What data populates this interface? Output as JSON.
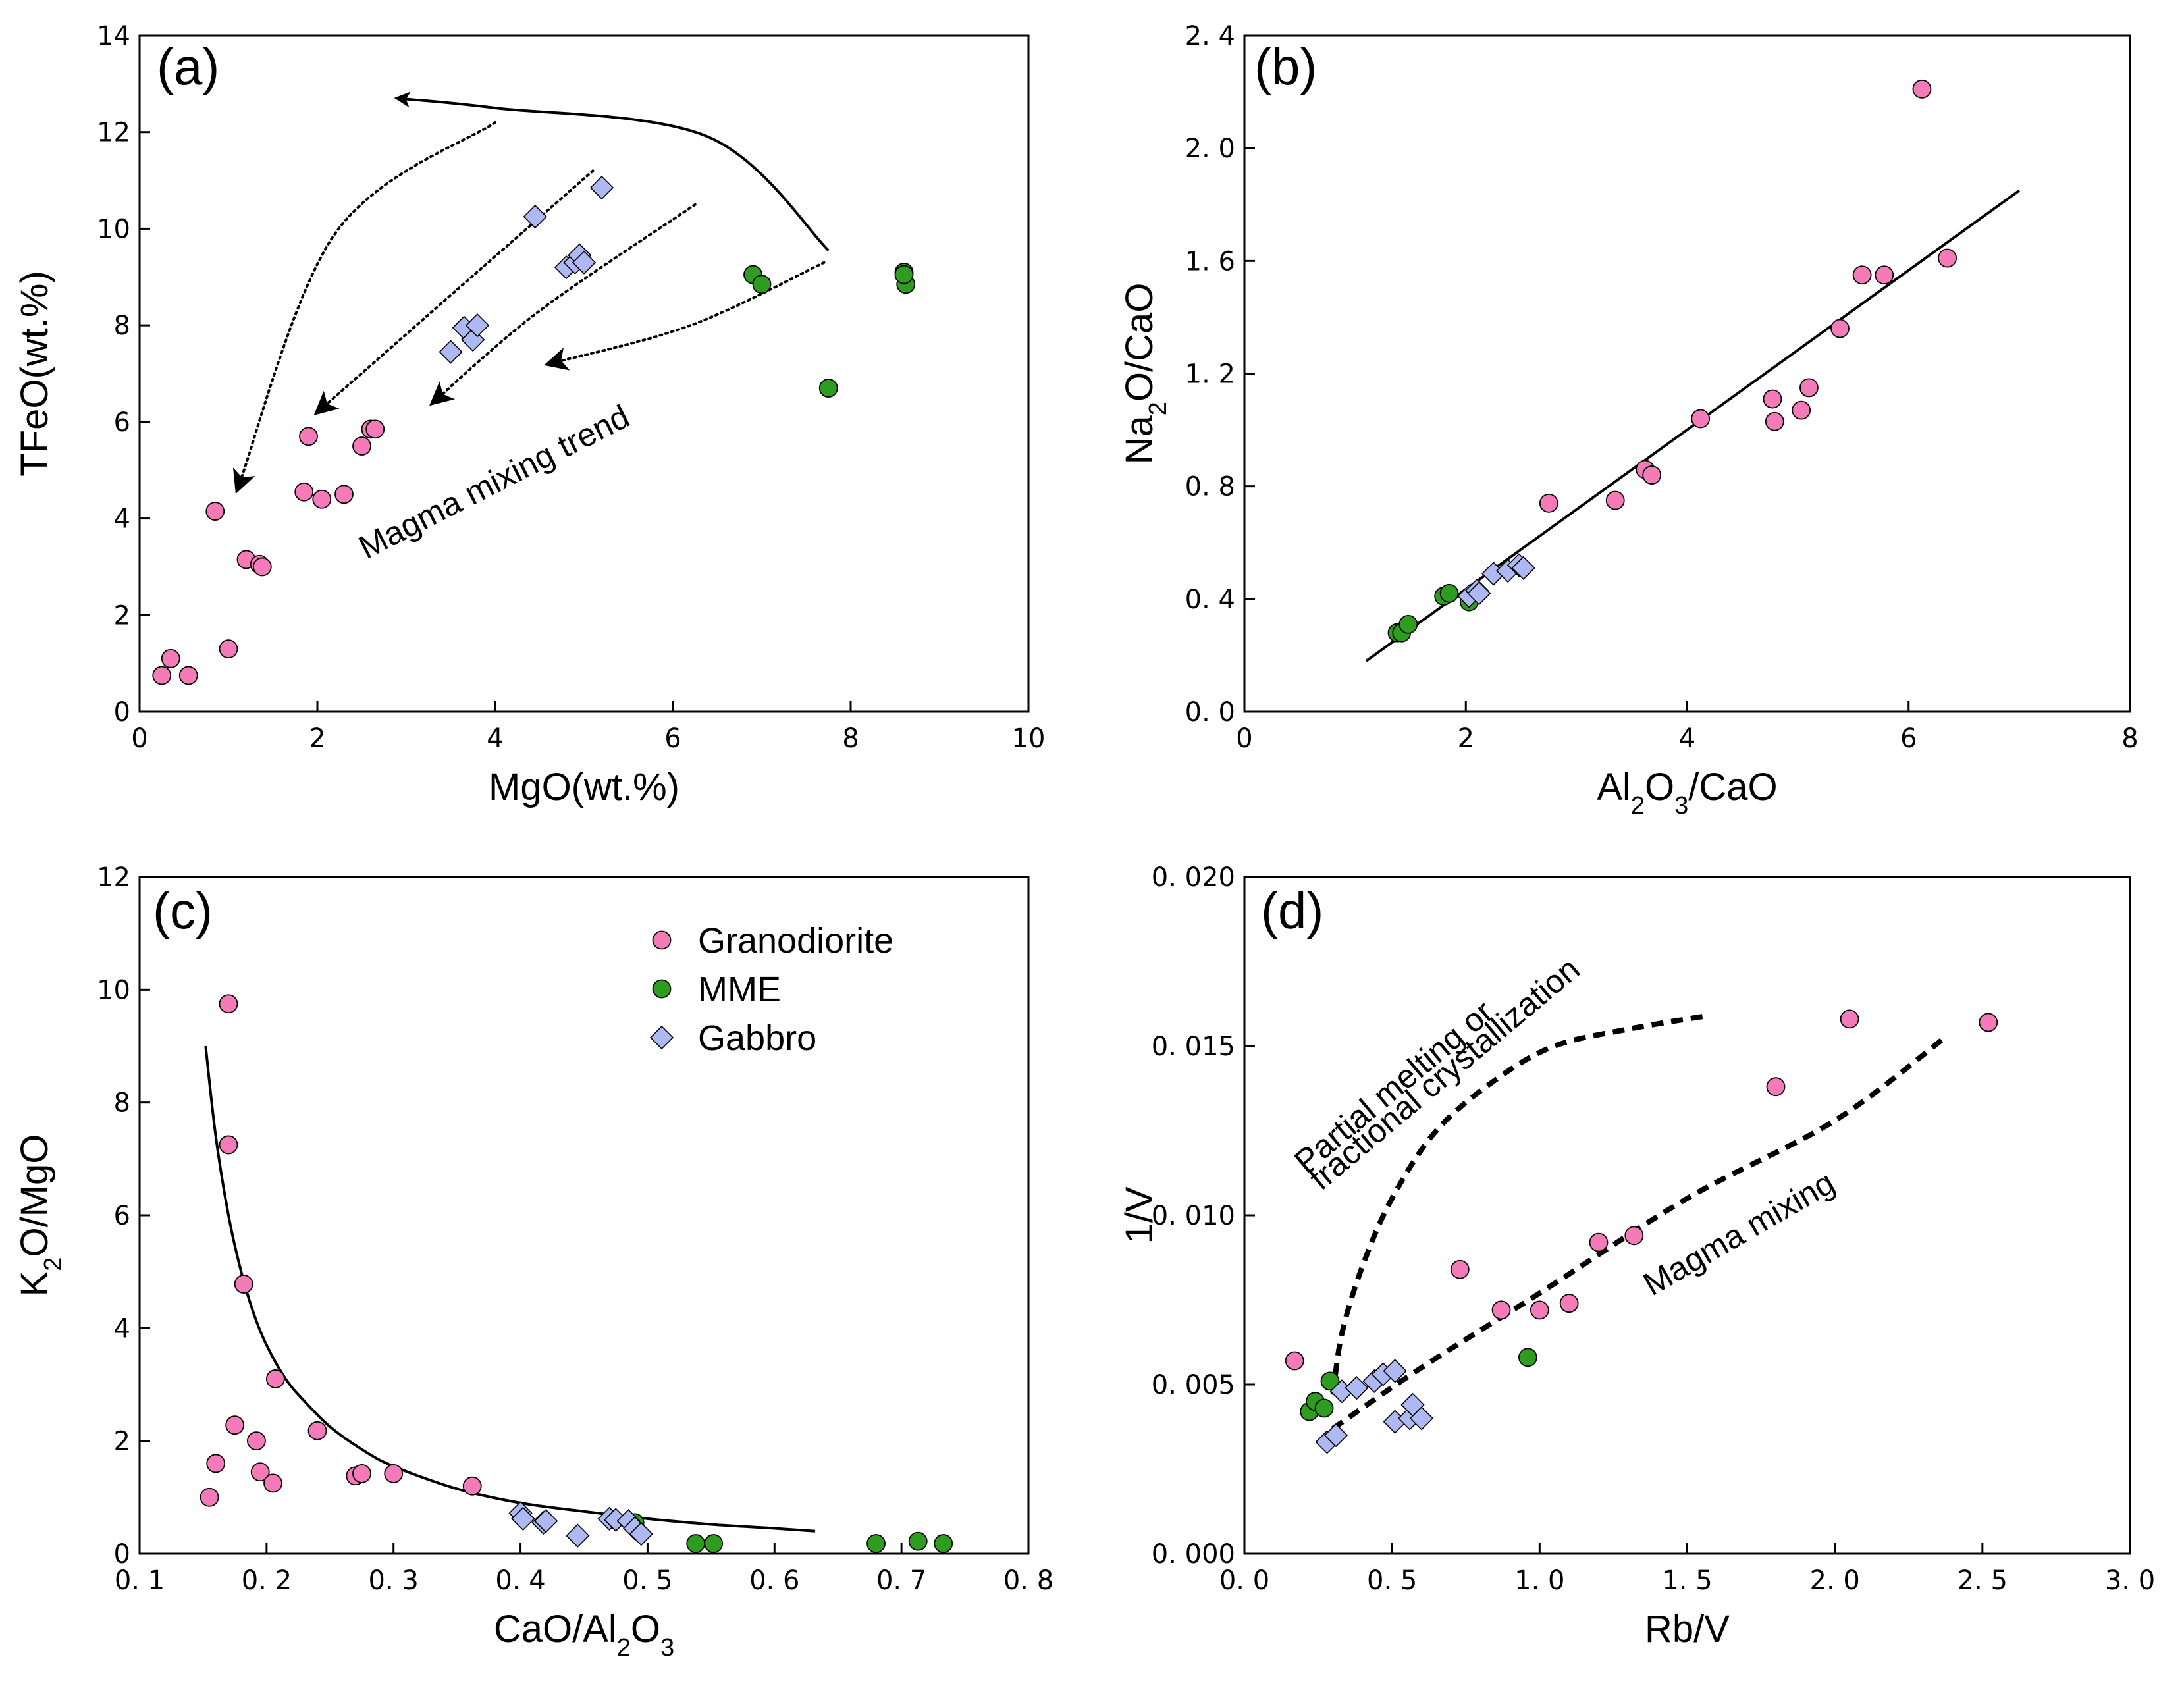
{
  "colors": {
    "granodiorite": "#F57BB8",
    "mme": "#2E9D1F",
    "gabbro": "#AEB8F2",
    "outline": "#000000"
  },
  "legend": [
    {
      "key": "granodiorite",
      "label": "Granodiorite",
      "marker": "circle"
    },
    {
      "key": "mme",
      "label": "MME",
      "marker": "circle"
    },
    {
      "key": "gabbro",
      "label": "Gabbro",
      "marker": "diamond"
    }
  ],
  "chart_data": [
    {
      "id": "a",
      "type": "scatter",
      "panel_label": "(a)",
      "xlabel": "MgO(wt.%)",
      "ylabel": "TFeO(wt.%)",
      "xlim": [
        0,
        10
      ],
      "ylim": [
        0,
        14
      ],
      "xticks": [
        0,
        2,
        4,
        6,
        8,
        10
      ],
      "yticks": [
        0,
        2,
        4,
        6,
        8,
        10,
        12,
        14
      ],
      "xtick_labels": [
        "0",
        "2",
        "4",
        "6",
        "8",
        "10"
      ],
      "ytick_labels": [
        "0",
        "2",
        "4",
        "6",
        "8",
        "10",
        "12",
        "14"
      ],
      "series": [
        {
          "key": "granodiorite",
          "points": [
            [
              0.25,
              0.75
            ],
            [
              0.35,
              1.1
            ],
            [
              0.55,
              0.75
            ],
            [
              1.0,
              1.3
            ],
            [
              0.85,
              4.15
            ],
            [
              1.2,
              3.15
            ],
            [
              1.35,
              3.05
            ],
            [
              1.38,
              3.0
            ],
            [
              1.85,
              4.55
            ],
            [
              2.05,
              4.4
            ],
            [
              2.3,
              4.5
            ],
            [
              1.9,
              5.7
            ],
            [
              2.5,
              5.5
            ],
            [
              2.6,
              5.85
            ],
            [
              2.65,
              5.85
            ]
          ]
        },
        {
          "key": "mme",
          "points": [
            [
              6.9,
              9.05
            ],
            [
              7.0,
              8.85
            ],
            [
              7.75,
              6.7
            ],
            [
              8.6,
              9.1
            ],
            [
              8.62,
              8.85
            ],
            [
              8.6,
              9.05
            ]
          ]
        },
        {
          "key": "gabbro",
          "points": [
            [
              3.5,
              7.45
            ],
            [
              3.65,
              7.95
            ],
            [
              3.75,
              7.7
            ],
            [
              3.8,
              8.0
            ],
            [
              4.45,
              10.25
            ],
            [
              4.8,
              9.2
            ],
            [
              4.9,
              9.3
            ],
            [
              4.95,
              9.45
            ],
            [
              5.0,
              9.3
            ],
            [
              5.2,
              10.85
            ]
          ]
        }
      ],
      "curves": [
        {
          "style": "solid",
          "arrow": "end",
          "points": [
            [
              7.75,
              9.55
            ],
            [
              6.4,
              11.9
            ],
            [
              4.0,
              12.5
            ],
            [
              2.9,
              12.7
            ]
          ]
        },
        {
          "style": "dotted",
          "arrow": "end",
          "points": [
            [
              4.0,
              12.2
            ],
            [
              2.2,
              9.9
            ],
            [
              1.1,
              4.6
            ]
          ]
        },
        {
          "style": "dotted",
          "arrow": "end",
          "points": [
            [
              5.1,
              11.2
            ],
            [
              3.3,
              8.3
            ],
            [
              2.0,
              6.2
            ]
          ]
        },
        {
          "style": "dotted",
          "arrow": "end",
          "points": [
            [
              6.25,
              10.5
            ],
            [
              4.5,
              8.3
            ],
            [
              3.3,
              6.4
            ]
          ]
        },
        {
          "style": "dotted",
          "arrow": "end",
          "points": [
            [
              7.7,
              9.3
            ],
            [
              6.2,
              8.0
            ],
            [
              4.6,
              7.2
            ]
          ]
        }
      ],
      "annotations": [
        {
          "text": "Magma mixing trend",
          "x": 2.55,
          "y": 3.15,
          "rotate": -27
        }
      ]
    },
    {
      "id": "b",
      "type": "scatter",
      "panel_label": "(b)",
      "xlabel_parts": [
        {
          "t": "Al"
        },
        {
          "t": "2",
          "sub": true
        },
        {
          "t": "O"
        },
        {
          "t": "3",
          "sub": true
        },
        {
          "t": "/CaO"
        }
      ],
      "ylabel_parts": [
        {
          "t": "Na"
        },
        {
          "t": "2",
          "sub": true
        },
        {
          "t": "O/CaO"
        }
      ],
      "xlim": [
        0,
        8
      ],
      "ylim": [
        0,
        2.4
      ],
      "xticks": [
        0,
        2,
        4,
        6,
        8
      ],
      "yticks": [
        0,
        0.4,
        0.8,
        1.2,
        1.6,
        2.0,
        2.4
      ],
      "xtick_labels": [
        "0",
        "2",
        "4",
        "6",
        "8"
      ],
      "ytick_labels": [
        "0. 0",
        "0. 4",
        "0. 8",
        "1. 2",
        "1. 6",
        "2. 0",
        "2. 4"
      ],
      "series": [
        {
          "key": "granodiorite",
          "points": [
            [
              2.75,
              0.74
            ],
            [
              3.35,
              0.75
            ],
            [
              3.62,
              0.86
            ],
            [
              3.68,
              0.84
            ],
            [
              4.12,
              1.04
            ],
            [
              4.77,
              1.11
            ],
            [
              4.79,
              1.03
            ],
            [
              5.03,
              1.07
            ],
            [
              5.1,
              1.15
            ],
            [
              5.38,
              1.36
            ],
            [
              5.58,
              1.55
            ],
            [
              5.78,
              1.55
            ],
            [
              6.35,
              1.61
            ],
            [
              6.12,
              2.21
            ]
          ]
        },
        {
          "key": "mme",
          "points": [
            [
              1.38,
              0.28
            ],
            [
              1.42,
              0.28
            ],
            [
              1.48,
              0.31
            ],
            [
              1.8,
              0.41
            ],
            [
              1.85,
              0.42
            ],
            [
              2.03,
              0.39
            ]
          ]
        },
        {
          "key": "gabbro",
          "points": [
            [
              2.03,
              0.41
            ],
            [
              2.1,
              0.43
            ],
            [
              2.12,
              0.42
            ],
            [
              2.25,
              0.49
            ],
            [
              2.38,
              0.5
            ],
            [
              2.48,
              0.52
            ],
            [
              2.52,
              0.51
            ]
          ]
        }
      ],
      "curves": [
        {
          "style": "solid",
          "points": [
            [
              1.1,
              0.18
            ],
            [
              7.0,
              1.85
            ]
          ]
        }
      ],
      "annotations": []
    },
    {
      "id": "c",
      "type": "scatter",
      "panel_label": "(c)",
      "xlabel_parts": [
        {
          "t": "CaO/Al"
        },
        {
          "t": "2",
          "sub": true
        },
        {
          "t": "O"
        },
        {
          "t": "3",
          "sub": true
        }
      ],
      "ylabel_parts": [
        {
          "t": "K"
        },
        {
          "t": "2",
          "sub": true
        },
        {
          "t": "O/MgO"
        }
      ],
      "xlim": [
        0.1,
        0.8
      ],
      "ylim": [
        0,
        12
      ],
      "xticks": [
        0.1,
        0.2,
        0.3,
        0.4,
        0.5,
        0.6,
        0.7,
        0.8
      ],
      "yticks": [
        0,
        2,
        4,
        6,
        8,
        10,
        12
      ],
      "xtick_labels": [
        "0. 1",
        "0. 2",
        "0. 3",
        "0. 4",
        "0. 5",
        "0. 6",
        "0. 7",
        "0. 8"
      ],
      "ytick_labels": [
        "0",
        "2",
        "4",
        "6",
        "8",
        "10",
        "12"
      ],
      "series": [
        {
          "key": "granodiorite",
          "points": [
            [
              0.155,
              1.0
            ],
            [
              0.16,
              1.6
            ],
            [
              0.17,
              9.75
            ],
            [
              0.17,
              7.25
            ],
            [
              0.175,
              2.28
            ],
            [
              0.182,
              4.78
            ],
            [
              0.192,
              2.0
            ],
            [
              0.195,
              1.45
            ],
            [
              0.205,
              1.25
            ],
            [
              0.207,
              3.1
            ],
            [
              0.24,
              2.18
            ],
            [
              0.27,
              1.38
            ],
            [
              0.275,
              1.42
            ],
            [
              0.3,
              1.42
            ],
            [
              0.362,
              1.2
            ]
          ]
        },
        {
          "key": "mme",
          "points": [
            [
              0.49,
              0.55
            ],
            [
              0.538,
              0.18
            ],
            [
              0.552,
              0.18
            ],
            [
              0.68,
              0.18
            ],
            [
              0.713,
              0.22
            ],
            [
              0.733,
              0.18
            ]
          ]
        },
        {
          "key": "gabbro",
          "points": [
            [
              0.4,
              0.72
            ],
            [
              0.402,
              0.62
            ],
            [
              0.418,
              0.55
            ],
            [
              0.42,
              0.58
            ],
            [
              0.445,
              0.32
            ],
            [
              0.47,
              0.62
            ],
            [
              0.475,
              0.6
            ],
            [
              0.485,
              0.58
            ],
            [
              0.49,
              0.45
            ],
            [
              0.495,
              0.35
            ]
          ]
        }
      ],
      "curves": [
        {
          "style": "solid",
          "points": [
            [
              0.152,
              9.0
            ],
            [
              0.16,
              7.4
            ],
            [
              0.17,
              6.0
            ],
            [
              0.18,
              5.0
            ],
            [
              0.19,
              4.25
            ],
            [
              0.2,
              3.7
            ],
            [
              0.215,
              3.1
            ],
            [
              0.23,
              2.7
            ],
            [
              0.25,
              2.25
            ],
            [
              0.275,
              1.85
            ],
            [
              0.3,
              1.55
            ],
            [
              0.35,
              1.15
            ],
            [
              0.4,
              0.9
            ],
            [
              0.45,
              0.75
            ],
            [
              0.5,
              0.62
            ],
            [
              0.55,
              0.52
            ],
            [
              0.6,
              0.45
            ],
            [
              0.632,
              0.4
            ]
          ]
        }
      ],
      "annotations": []
    },
    {
      "id": "d",
      "type": "scatter",
      "panel_label": "(d)",
      "xlabel": "Rb/V",
      "ylabel": "1/V",
      "xlim": [
        0,
        3.0
      ],
      "ylim": [
        0,
        0.02
      ],
      "xticks": [
        0,
        0.5,
        1.0,
        1.5,
        2.0,
        2.5,
        3.0
      ],
      "yticks": [
        0,
        0.005,
        0.01,
        0.015,
        0.02
      ],
      "xtick_labels": [
        "0. 0",
        "0. 5",
        "1. 0",
        "1. 5",
        "2. 0",
        "2. 5",
        "3. 0"
      ],
      "ytick_labels": [
        "0. 000",
        "0. 005",
        "0. 010",
        "0. 015",
        "0. 020"
      ],
      "series": [
        {
          "key": "granodiorite",
          "points": [
            [
              0.17,
              0.0057
            ],
            [
              0.73,
              0.0084
            ],
            [
              0.87,
              0.0072
            ],
            [
              1.0,
              0.0072
            ],
            [
              1.1,
              0.0074
            ],
            [
              1.2,
              0.0092
            ],
            [
              1.32,
              0.0094
            ],
            [
              1.8,
              0.0138
            ],
            [
              2.05,
              0.0158
            ],
            [
              2.52,
              0.0157
            ]
          ]
        },
        {
          "key": "mme",
          "points": [
            [
              0.22,
              0.0042
            ],
            [
              0.24,
              0.0045
            ],
            [
              0.27,
              0.0043
            ],
            [
              0.29,
              0.0051
            ],
            [
              0.96,
              0.0058
            ]
          ]
        },
        {
          "key": "gabbro",
          "points": [
            [
              0.28,
              0.0033
            ],
            [
              0.31,
              0.0035
            ],
            [
              0.33,
              0.0048
            ],
            [
              0.38,
              0.0049
            ],
            [
              0.44,
              0.0051
            ],
            [
              0.47,
              0.0053
            ],
            [
              0.51,
              0.0054
            ],
            [
              0.51,
              0.0039
            ],
            [
              0.56,
              0.004
            ],
            [
              0.57,
              0.0044
            ],
            [
              0.6,
              0.004
            ]
          ]
        }
      ],
      "curves": [
        {
          "style": "dashed",
          "points": [
            [
              0.3,
              0.0047
            ],
            [
              0.33,
              0.0065
            ],
            [
              0.4,
              0.0085
            ],
            [
              0.5,
              0.0105
            ],
            [
              0.65,
              0.0125
            ],
            [
              0.85,
              0.014
            ],
            [
              1.05,
              0.015
            ],
            [
              1.3,
              0.0155
            ],
            [
              1.57,
              0.0159
            ]
          ]
        },
        {
          "style": "dashed",
          "points": [
            [
              0.3,
              0.0037
            ],
            [
              0.6,
              0.0055
            ],
            [
              1.0,
              0.0077
            ],
            [
              1.5,
              0.0105
            ],
            [
              2.0,
              0.0128
            ],
            [
              2.38,
              0.0153
            ]
          ]
        }
      ],
      "annotations": [
        {
          "text": "Partial melting or",
          "x": 0.21,
          "y": 0.0112,
          "rotate": -40
        },
        {
          "text": "fractional crystallization",
          "x": 0.26,
          "y": 0.0107,
          "rotate": -40
        },
        {
          "text": "Magma mixing",
          "x": 1.38,
          "y": 0.0076,
          "rotate": -30
        }
      ]
    }
  ]
}
